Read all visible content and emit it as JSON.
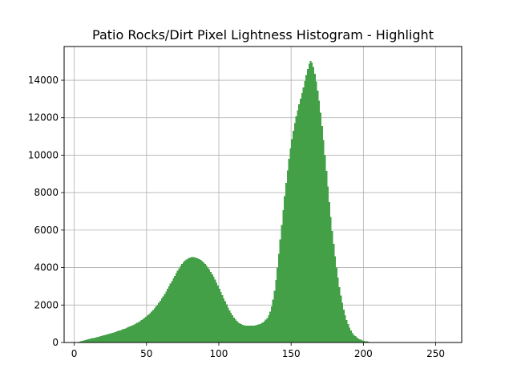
{
  "chart_data": {
    "type": "bar",
    "title": "Patio Rocks/Dirt Pixel Lightness Histogram - Highlight",
    "xlabel": "",
    "ylabel": "",
    "xlim": [
      -7,
      268
    ],
    "ylim": [
      0,
      15800
    ],
    "x_ticks": [
      0,
      50,
      100,
      150,
      200,
      250
    ],
    "y_ticks": [
      0,
      2000,
      4000,
      6000,
      8000,
      10000,
      12000,
      14000
    ],
    "grid": true,
    "bar_color": "#43a047",
    "bin_start": 0,
    "bin_width": 1,
    "values": [
      0,
      5,
      20,
      40,
      60,
      80,
      100,
      120,
      140,
      165,
      185,
      205,
      225,
      245,
      265,
      285,
      305,
      325,
      345,
      365,
      385,
      405,
      425,
      445,
      465,
      490,
      515,
      540,
      565,
      590,
      615,
      640,
      668,
      698,
      728,
      760,
      792,
      825,
      860,
      895,
      930,
      968,
      1008,
      1050,
      1095,
      1142,
      1192,
      1245,
      1300,
      1360,
      1425,
      1495,
      1570,
      1650,
      1735,
      1825,
      1920,
      2020,
      2125,
      2235,
      2350,
      2470,
      2595,
      2725,
      2860,
      3000,
      3140,
      3280,
      3420,
      3560,
      3700,
      3835,
      3965,
      4085,
      4195,
      4290,
      4370,
      4435,
      4485,
      4520,
      4545,
      4555,
      4555,
      4545,
      4525,
      4495,
      4455,
      4405,
      4345,
      4275,
      4195,
      4105,
      4005,
      3895,
      3775,
      3645,
      3505,
      3355,
      3200,
      3040,
      2875,
      2705,
      2535,
      2365,
      2195,
      2030,
      1870,
      1720,
      1580,
      1452,
      1338,
      1238,
      1152,
      1080,
      1022,
      978,
      946,
      924,
      908,
      898,
      892,
      890,
      892,
      898,
      908,
      922,
      940,
      965,
      995,
      1032,
      1078,
      1135,
      1210,
      1310,
      1450,
      1650,
      1930,
      2300,
      2770,
      3340,
      4000,
      4730,
      5500,
      6280,
      7060,
      7810,
      8520,
      9190,
      9800,
      10360,
      10860,
      11310,
      11710,
      12070,
      12400,
      12710,
      13010,
      13310,
      13620,
      13950,
      14280,
      14600,
      14880,
      15030,
      14950,
      14700,
      14350,
      13930,
      13450,
      12900,
      12270,
      11570,
      10810,
      10000,
      9160,
      8320,
      7500,
      6710,
      5960,
      5260,
      4610,
      4010,
      3460,
      2960,
      2510,
      2110,
      1760,
      1460,
      1200,
      980,
      795,
      640,
      515,
      415,
      336,
      272,
      220,
      178,
      144,
      116,
      93,
      74,
      58,
      44,
      32,
      22,
      14,
      8,
      3,
      0,
      0
    ]
  }
}
